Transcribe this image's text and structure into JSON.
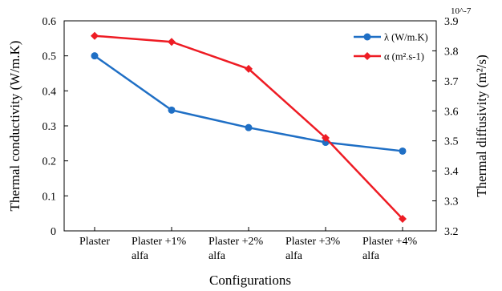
{
  "chart_data": {
    "type": "line",
    "categories": [
      "Plaster",
      "Plaster +1% alfa",
      "Plaster +2% alfa",
      "Plaster +3% alfa",
      "Plaster +4% alfa"
    ],
    "category_lines": [
      [
        "Plaster"
      ],
      [
        "Plaster +1%",
        "alfa"
      ],
      [
        "Plaster +2%",
        "alfa"
      ],
      [
        "Plaster +3%",
        "alfa"
      ],
      [
        "Plaster +4%",
        "alfa"
      ]
    ],
    "xlabel": "Configurations",
    "ylabel_left": "Thermal conductivity (W/m.K)",
    "ylabel_right": "Thermal diffusivity (m²/s)",
    "right_axis_multiplier": "10^-7",
    "ylim_left": [
      0,
      0.6
    ],
    "yticks_left": [
      "0",
      "0.1",
      "0.2",
      "0.3",
      "0.4",
      "0.5",
      "0.6"
    ],
    "ylim_right": [
      3.2,
      3.9
    ],
    "yticks_right": [
      "3.2",
      "3.3",
      "3.4",
      "3.5",
      "3.6",
      "3.7",
      "3.8",
      "3.9"
    ],
    "grid": false,
    "legend_position": "top-right",
    "series": [
      {
        "name": "λ (W/m.K)",
        "axis": "left",
        "color": "#1f6fc5",
        "marker": "circle",
        "values": [
          0.5,
          0.345,
          0.295,
          0.253,
          0.228
        ]
      },
      {
        "name": "α (m².s-1)",
        "axis": "right",
        "color": "#ee1c24",
        "marker": "diamond",
        "values": [
          3.85,
          3.83,
          3.74,
          3.51,
          3.24
        ]
      }
    ]
  }
}
